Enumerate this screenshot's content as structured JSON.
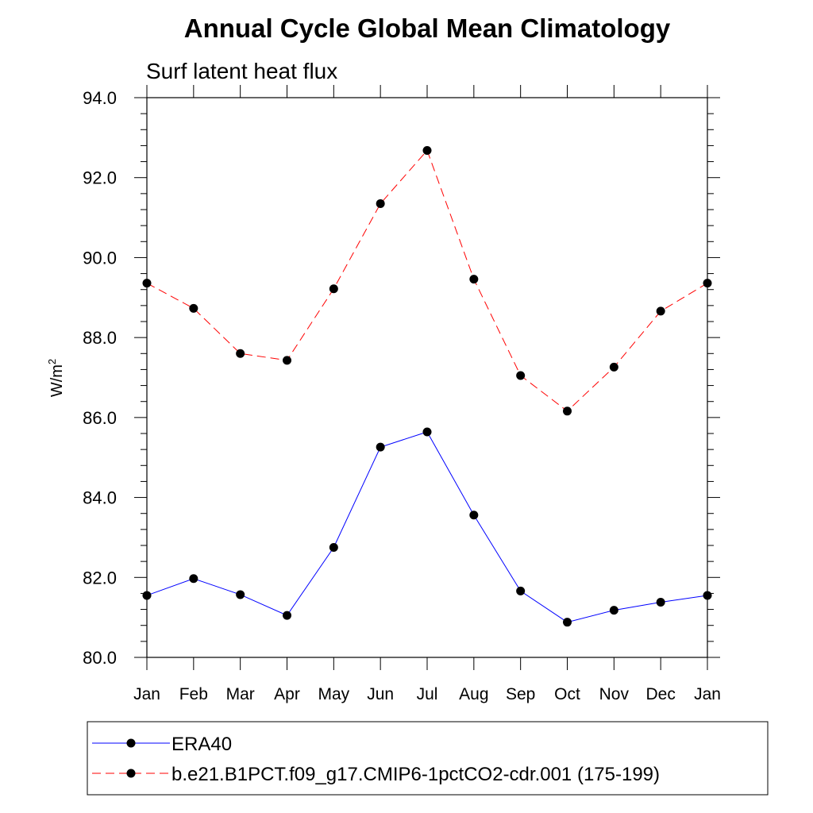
{
  "chart_data": {
    "type": "line",
    "title": "Annual Cycle Global Mean Climatology",
    "subtitle": "Surf latent heat flux",
    "ylabel": "W/m",
    "ylabel_sup": "2",
    "xlabel": "",
    "categories": [
      "Jan",
      "Feb",
      "Mar",
      "Apr",
      "May",
      "Jun",
      "Jul",
      "Aug",
      "Sep",
      "Oct",
      "Nov",
      "Dec",
      "Jan"
    ],
    "ylim": [
      80.0,
      94.0
    ],
    "yticks": [
      "80.0",
      "82.0",
      "84.0",
      "86.0",
      "88.0",
      "90.0",
      "92.0",
      "94.0"
    ],
    "grid": false,
    "legend_position": "bottom",
    "series": [
      {
        "name": "ERA40",
        "color": "#0000ff",
        "dash": "solid",
        "values": [
          81.55,
          81.97,
          81.57,
          81.05,
          82.75,
          85.26,
          85.64,
          83.56,
          81.66,
          80.88,
          81.18,
          81.38,
          81.55
        ]
      },
      {
        "name": "b.e21.B1PCT.f09_g17.CMIP6-1pctCO2-cdr.001 (175-199)",
        "color": "#ff0000",
        "dash": "dashed",
        "values": [
          89.36,
          88.73,
          87.6,
          87.43,
          89.22,
          91.35,
          92.68,
          89.46,
          87.05,
          86.16,
          87.26,
          88.66,
          89.36
        ]
      }
    ]
  }
}
